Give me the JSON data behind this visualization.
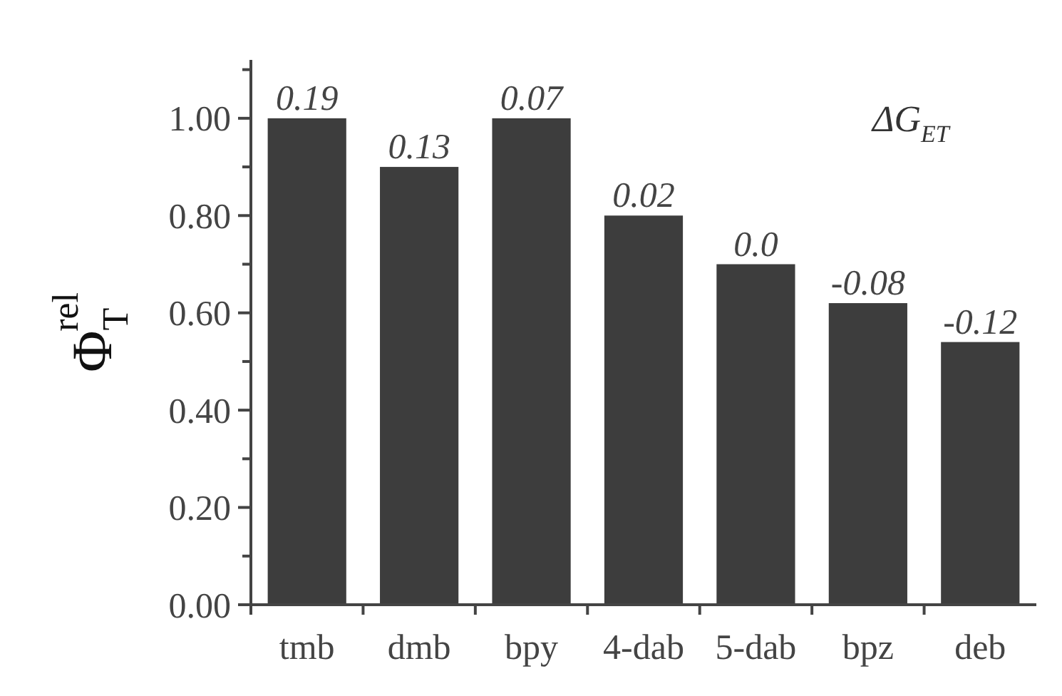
{
  "chart_data": {
    "type": "bar",
    "ylabel": "Φ$_{T}$$^{rel}$",
    "categories": [
      "tmb",
      "dmb",
      "bpy",
      "4-dab",
      "5-dab",
      "bpz",
      "deb"
    ],
    "values": [
      1.0,
      0.9,
      1.0,
      0.8,
      0.7,
      0.62,
      0.54
    ],
    "color": "#3d3d3d",
    "ylim": [
      0,
      1.12
    ],
    "yticks": [
      {
        "value": 0,
        "label": "0.00"
      },
      {
        "value": 0.1,
        "label": null
      },
      {
        "value": 0.2,
        "label": "0.20"
      },
      {
        "value": 0.3,
        "label": null
      },
      {
        "value": 0.4,
        "label": "0.40"
      },
      {
        "value": 0.5,
        "label": null
      },
      {
        "value": 0.6,
        "label": "0.60"
      },
      {
        "value": 0.7,
        "label": null
      },
      {
        "value": 0.8,
        "label": "0.80"
      },
      {
        "value": 0.9,
        "label": null
      },
      {
        "value": 1,
        "label": "1.00"
      },
      {
        "value": 1.1,
        "label": null
      }
    ],
    "annotations": [
      "ΔG$_{ET}$",
      {
        "text": "0.19",
        "x": "tmb",
        "y": 1.0
      },
      {
        "text": "0.13",
        "x": "dmb",
        "y": 0.9
      },
      {
        "text": "0.07",
        "x": "bpy",
        "y": 1.0
      },
      {
        "text": "0.02",
        "x": "4-dab",
        "y": 0.8
      },
      {
        "text": "0.0",
        "x": "5-dab",
        "y": 0.7
      },
      {
        "text": "-0.08",
        "x": "bpz",
        "y": 0.62
      },
      {
        "text": "-0.12",
        "x": "deb",
        "y": 0.54
      }
    ]
  }
}
